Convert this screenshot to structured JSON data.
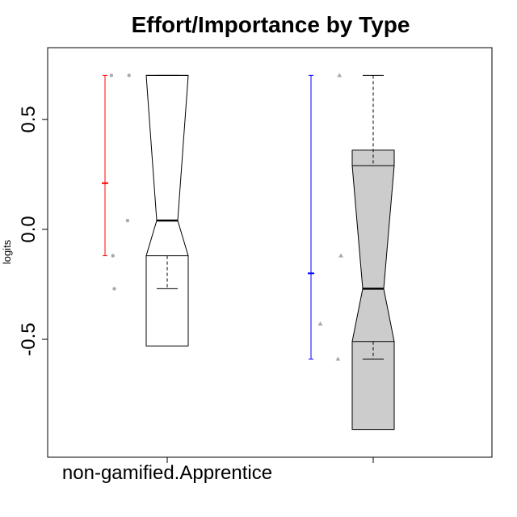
{
  "chart_data": {
    "type": "box",
    "title": "Effort/Importance by Type",
    "xlabel": "",
    "ylabel": "logits",
    "ylim": [
      -0.97,
      0.76
    ],
    "yticks": [
      -0.5,
      0.0,
      0.5
    ],
    "ytick_labels": [
      "-0.5",
      "0.0",
      "0.5"
    ],
    "categories": [
      "non-gamified.Apprentice",
      ""
    ],
    "x_tick_labels": [
      "non-gamified.Apprentice",
      ""
    ],
    "groups": [
      {
        "box": {
          "q1": -0.12,
          "median": 0.04,
          "q3": 0.7,
          "whisker_low": -0.27,
          "whisker_high": 0.7,
          "notch_low": -0.53,
          "notch_high": 0.7,
          "fill": "#ffffff"
        },
        "interval": {
          "low": -0.12,
          "mean": 0.21,
          "high": 0.7,
          "color": "#ff0000"
        },
        "points": [
          {
            "x": -0.38,
            "y": 0.7,
            "shape": "circle"
          },
          {
            "x": -0.26,
            "y": 0.7,
            "shape": "circle"
          },
          {
            "x": -0.27,
            "y": 0.04,
            "shape": "circle"
          },
          {
            "x": -0.37,
            "y": -0.12,
            "shape": "circle"
          },
          {
            "x": -0.36,
            "y": -0.27,
            "shape": "circle"
          }
        ]
      },
      {
        "box": {
          "q1": -0.51,
          "median": -0.27,
          "q3": 0.29,
          "whisker_low": -0.59,
          "whisker_high": 0.7,
          "notch_low": -0.91,
          "notch_high": 0.36,
          "fill": "#cccccc"
        },
        "interval": {
          "low": -0.59,
          "mean": -0.2,
          "high": 0.7,
          "color": "#0000ff"
        },
        "points": [
          {
            "x": -0.23,
            "y": 0.7,
            "shape": "triangle"
          },
          {
            "x": -0.22,
            "y": -0.12,
            "shape": "triangle"
          },
          {
            "x": -0.36,
            "y": -0.43,
            "shape": "triangle"
          },
          {
            "x": -0.24,
            "y": -0.59,
            "shape": "triangle"
          }
        ]
      }
    ],
    "point_color": "#a9a9b4"
  }
}
